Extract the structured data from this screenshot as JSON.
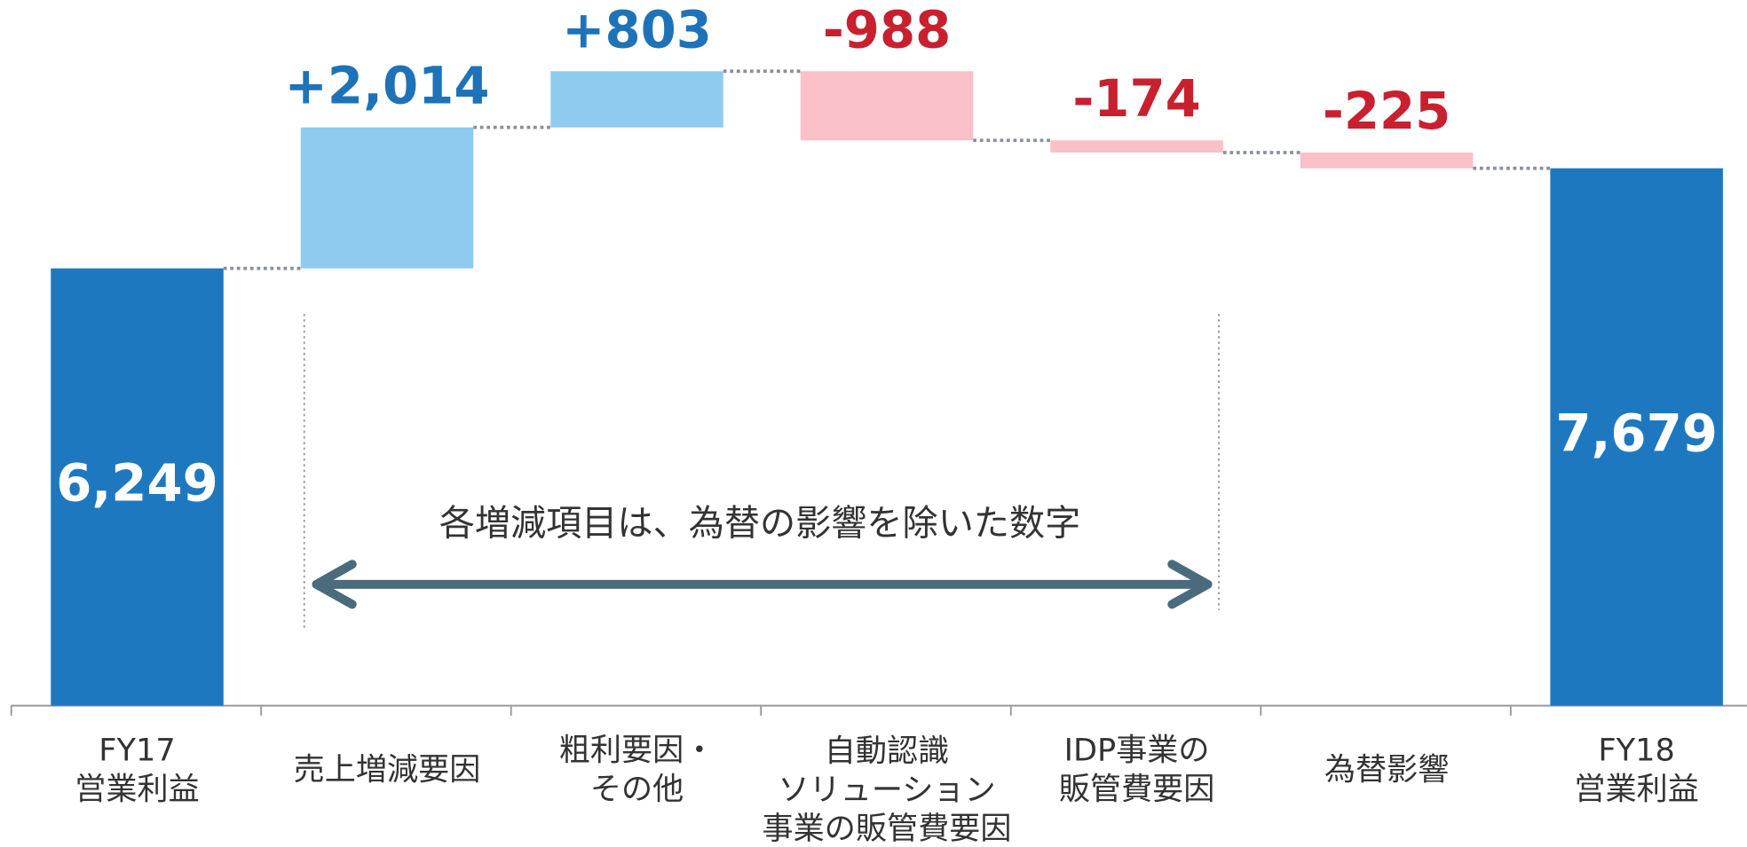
{
  "chart_data": {
    "type": "waterfall",
    "categories": [
      [
        "FY17",
        "営業利益"
      ],
      [
        "売上増減要因"
      ],
      [
        "粗利要因・",
        "その他"
      ],
      [
        "自動認識",
        "ソリューション",
        "事業の販管費要因"
      ],
      [
        "IDP事業の",
        "販管費要因"
      ],
      [
        "為替影響"
      ],
      [
        "FY18",
        "営業利益"
      ]
    ],
    "values": [
      6249,
      2014,
      803,
      -988,
      -174,
      -225,
      7679
    ],
    "value_labels": [
      "6,249",
      "+2,014",
      "+803",
      "-988",
      "-174",
      "-225",
      "7,679"
    ],
    "measures": [
      "total",
      "relative",
      "relative",
      "relative",
      "relative",
      "relative",
      "total"
    ],
    "colors": {
      "total": "#1e78c0",
      "increase": "#8ecbef",
      "decrease": "#f9c0c7"
    },
    "label_colors": {
      "total": "#ffffff",
      "increase": "#1e73b8",
      "decrease": "#c8202e"
    },
    "annotation": "各増減項目は、為替の影響を除いた数字"
  }
}
